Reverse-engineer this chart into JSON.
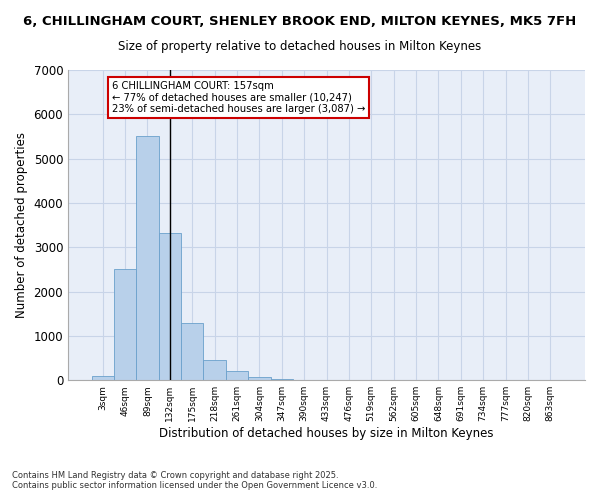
{
  "title_line1": "6, CHILLINGHAM COURT, SHENLEY BROOK END, MILTON KEYNES, MK5 7FH",
  "title_line2": "Size of property relative to detached houses in Milton Keynes",
  "xlabel": "Distribution of detached houses by size in Milton Keynes",
  "ylabel": "Number of detached properties",
  "categories": [
    "3sqm",
    "46sqm",
    "89sqm",
    "132sqm",
    "175sqm",
    "218sqm",
    "261sqm",
    "304sqm",
    "347sqm",
    "390sqm",
    "433sqm",
    "476sqm",
    "519sqm",
    "562sqm",
    "605sqm",
    "648sqm",
    "691sqm",
    "734sqm",
    "777sqm",
    "820sqm",
    "863sqm"
  ],
  "bar_heights": [
    100,
    2500,
    5500,
    3330,
    1300,
    450,
    210,
    80,
    30,
    0,
    0,
    0,
    0,
    0,
    0,
    0,
    0,
    0,
    0,
    0,
    0
  ],
  "bar_color": "#b8d0ea",
  "bar_edge_color": "#6aa0cc",
  "grid_color": "#c8d4e8",
  "background_color": "#e8eef8",
  "ylim": [
    0,
    7000
  ],
  "yticks": [
    0,
    1000,
    2000,
    3000,
    4000,
    5000,
    6000,
    7000
  ],
  "property_bin_index": 3,
  "annotation_title": "6 CHILLINGHAM COURT: 157sqm",
  "annotation_line1": "← 77% of detached houses are smaller (10,247)",
  "annotation_line2": "23% of semi-detached houses are larger (3,087) →",
  "annotation_box_color": "#ffffff",
  "annotation_box_edge": "#cc0000",
  "vline_x_index": 3,
  "footer_line1": "Contains HM Land Registry data © Crown copyright and database right 2025.",
  "footer_line2": "Contains public sector information licensed under the Open Government Licence v3.0."
}
